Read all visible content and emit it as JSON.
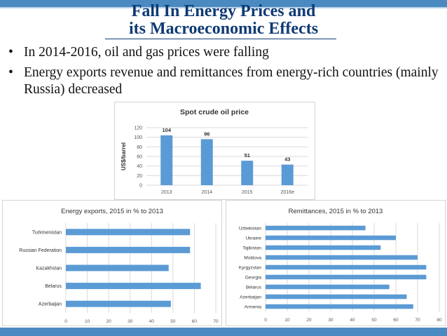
{
  "slide": {
    "title_line1": "Fall In Energy Prices and",
    "title_line2": "its Macroeconomic Effects",
    "bullets": [
      "In 2014-2016, oil and gas prices were falling",
      "Energy exports revenue and remittances from energy-rich countries (mainly Russia) decreased"
    ],
    "bullet_symbol": "•"
  },
  "colors": {
    "bar": "#5b9bd5",
    "accent": "#4a8ac0",
    "title": "#0e3a73"
  },
  "chart_data": [
    {
      "type": "bar",
      "title": "Spot crude oil price",
      "ylabel": "US$/barrel",
      "xlabel": "",
      "categories": [
        "2013",
        "2014",
        "2015",
        "2016e"
      ],
      "values": [
        104,
        96,
        51,
        43
      ],
      "ylim": [
        0,
        120
      ],
      "yticks": [
        0,
        20,
        40,
        60,
        80,
        100,
        120
      ],
      "grid": true,
      "data_labels": true
    },
    {
      "type": "bar",
      "orientation": "horizontal",
      "title": "Energy exports, 2015 in % to 2013",
      "categories": [
        "Turkmenistan",
        "Russian Federation",
        "Kazakhstan",
        "Belarus",
        "Azerbaijan"
      ],
      "values": [
        58,
        58,
        48,
        63,
        49
      ],
      "xlim": [
        0,
        70
      ],
      "xticks": [
        0,
        10,
        20,
        30,
        40,
        50,
        60,
        70
      ],
      "grid": true
    },
    {
      "type": "bar",
      "orientation": "horizontal",
      "title": "Remittances, 2015 in % to 2013",
      "categories": [
        "Uzbekistan",
        "Ukraine",
        "Tajikistan",
        "Moldova",
        "Kyrgyzstan",
        "Georgia",
        "Belarus",
        "Azerbaijan",
        "Armenia"
      ],
      "values": [
        46,
        60,
        53,
        70,
        74,
        74,
        57,
        65,
        68
      ],
      "xlim": [
        0,
        80
      ],
      "xticks": [
        0,
        10,
        20,
        30,
        40,
        50,
        60,
        70,
        80
      ],
      "grid": true
    }
  ]
}
